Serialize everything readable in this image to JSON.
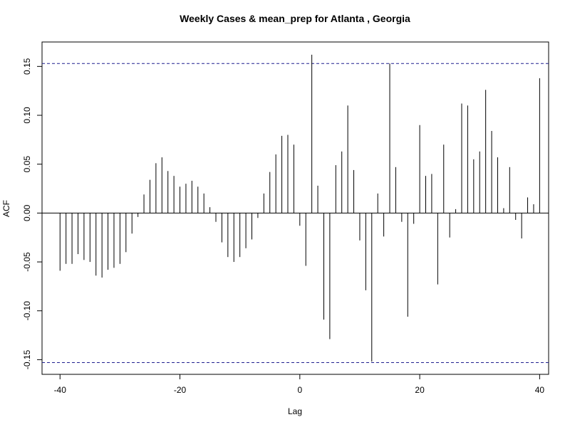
{
  "chart_data": {
    "type": "bar",
    "title": "Weekly Cases & mean_prep for Atlanta , Georgia",
    "xlabel": "Lag",
    "ylabel": "ACF",
    "xlim": [
      -43,
      41.5
    ],
    "ylim": [
      -0.165,
      0.175
    ],
    "x_ticks": [
      -40,
      -20,
      0,
      20,
      40
    ],
    "y_ticks": [
      -0.15,
      -0.1,
      -0.05,
      0.0,
      0.05,
      0.1,
      0.15
    ],
    "y_tick_labels": [
      "-0.15",
      "-0.10",
      "-0.05",
      "0.00",
      "0.05",
      "0.10",
      "0.15"
    ],
    "x_tick_labels": [
      "-40",
      "-20",
      "0",
      "20",
      "40"
    ],
    "confidence_bound": 0.153,
    "zero_line": true,
    "grid": false,
    "x": [
      -40,
      -39,
      -38,
      -37,
      -36,
      -35,
      -34,
      -33,
      -32,
      -31,
      -30,
      -29,
      -28,
      -27,
      -26,
      -25,
      -24,
      -23,
      -22,
      -21,
      -20,
      -19,
      -18,
      -17,
      -16,
      -15,
      -14,
      -13,
      -12,
      -11,
      -10,
      -9,
      -8,
      -7,
      -6,
      -5,
      -4,
      -3,
      -2,
      -1,
      0,
      1,
      2,
      3,
      4,
      5,
      6,
      7,
      8,
      9,
      10,
      11,
      12,
      13,
      14,
      15,
      16,
      17,
      18,
      19,
      20,
      21,
      22,
      23,
      24,
      25,
      26,
      27,
      28,
      29,
      30,
      31,
      32,
      33,
      34,
      35,
      36,
      37,
      38,
      39,
      40
    ],
    "values": [
      -0.059,
      -0.052,
      -0.052,
      -0.042,
      -0.048,
      -0.05,
      -0.064,
      -0.066,
      -0.058,
      -0.056,
      -0.052,
      -0.04,
      -0.021,
      -0.004,
      0.019,
      0.034,
      0.051,
      0.057,
      0.043,
      0.038,
      0.027,
      0.03,
      0.033,
      0.027,
      0.02,
      0.006,
      -0.009,
      -0.03,
      -0.045,
      -0.05,
      -0.045,
      -0.036,
      -0.027,
      -0.005,
      0.02,
      0.042,
      0.06,
      0.079,
      0.08,
      0.07,
      -0.013,
      -0.054,
      0.162,
      0.028,
      -0.109,
      -0.129,
      0.049,
      0.063,
      0.11,
      0.044,
      -0.028,
      -0.079,
      -0.152,
      0.02,
      -0.024,
      0.153,
      0.047,
      -0.009,
      -0.106,
      -0.011,
      0.09,
      0.038,
      0.04,
      -0.073,
      0.07,
      -0.025,
      0.004,
      0.112,
      0.11,
      0.055,
      0.063,
      0.126,
      0.084,
      0.057,
      0.005,
      0.047,
      -0.007,
      -0.026,
      0.016,
      0.009,
      0.138
    ]
  }
}
